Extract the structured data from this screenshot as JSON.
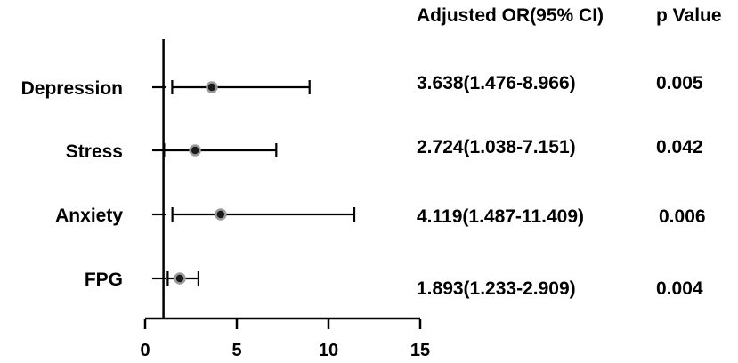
{
  "chart_data": {
    "type": "forest",
    "xlim": [
      0,
      15
    ],
    "xticks": [
      0,
      5,
      10,
      15
    ],
    "reference_line": 1,
    "grid": false,
    "columns": {
      "estimate_header": "Adjusted OR(95% CI)",
      "p_header": "p Value"
    },
    "rows": [
      {
        "label": "Depression",
        "or": 3.638,
        "lower": 1.476,
        "upper": 8.966,
        "estimate_text": "3.638(1.476-8.966)",
        "p_text": "0.005"
      },
      {
        "label": "Stress",
        "or": 2.724,
        "lower": 1.038,
        "upper": 7.151,
        "estimate_text": "2.724(1.038-7.151)",
        "p_text": "0.042"
      },
      {
        "label": "Anxiety",
        "or": 4.119,
        "lower": 1.487,
        "upper": 11.409,
        "estimate_text": "4.119(1.487-11.409)",
        "p_text": "0.006"
      },
      {
        "label": "FPG",
        "or": 1.893,
        "lower": 1.233,
        "upper": 2.909,
        "estimate_text": "1.893(1.233-2.909)",
        "p_text": "0.004"
      }
    ],
    "colors": {
      "line": "#000000",
      "marker_fill": "#1a1a1a",
      "marker_stroke": "#9a9a9a"
    }
  }
}
